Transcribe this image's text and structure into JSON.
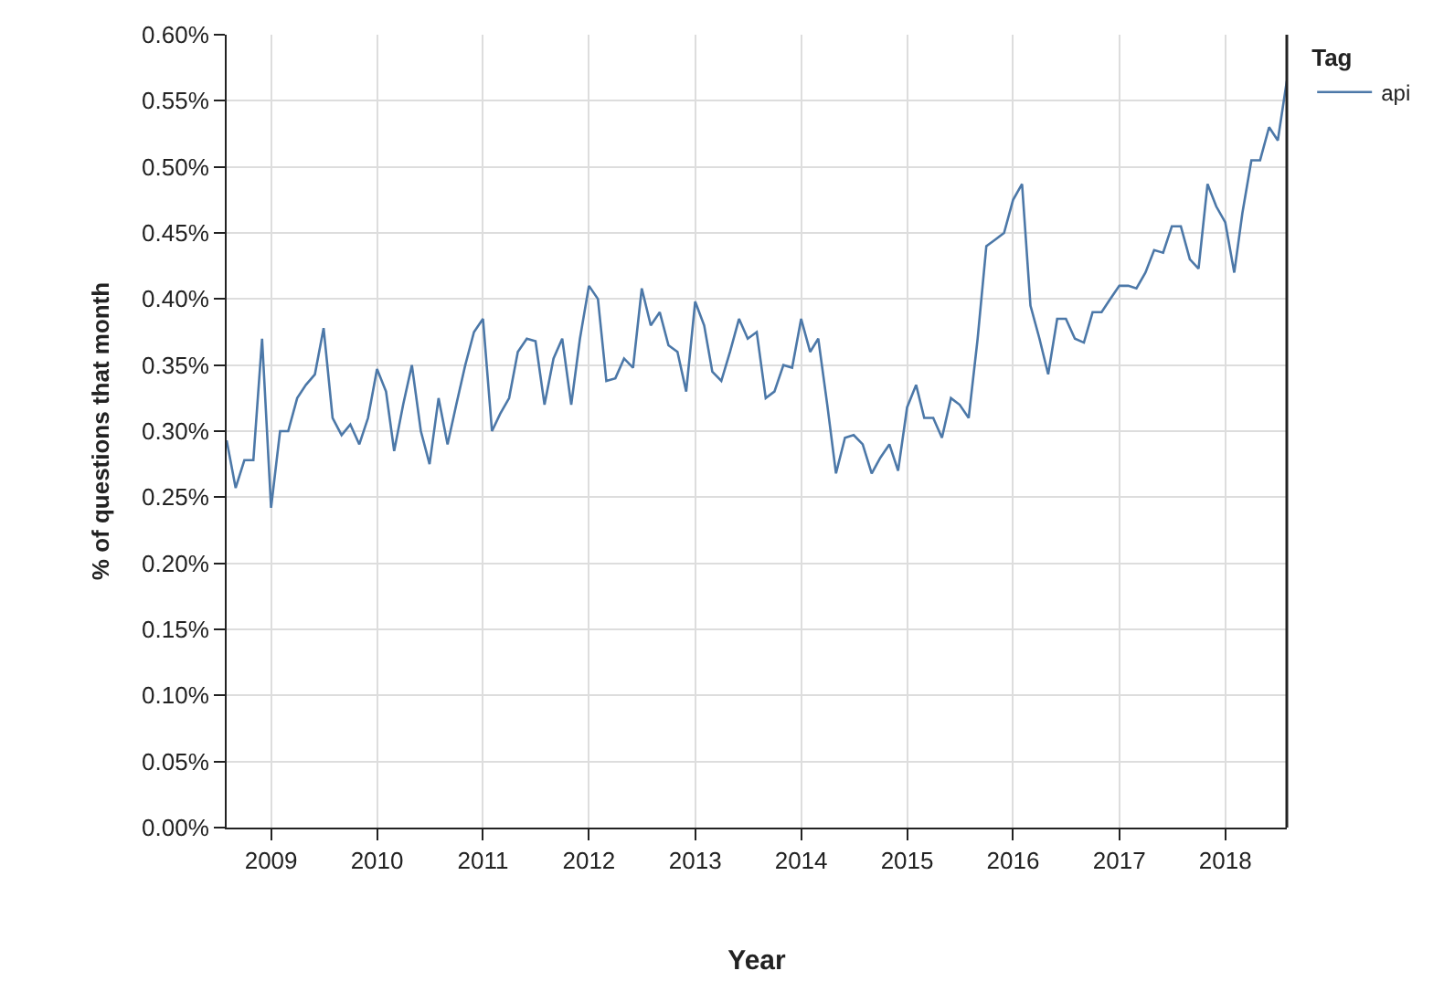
{
  "chart_data": {
    "type": "line",
    "xlabel": "Year",
    "ylabel": "% of questions that month",
    "legend_title": "Tag",
    "legend": "top right",
    "grid": true,
    "marker": "none",
    "line_style": "solid",
    "x": [
      "2008-08",
      "2008-09",
      "2008-10",
      "2008-11",
      "2008-12",
      "2009-01",
      "2009-02",
      "2009-03",
      "2009-04",
      "2009-05",
      "2009-06",
      "2009-07",
      "2009-08",
      "2009-09",
      "2009-10",
      "2009-11",
      "2009-12",
      "2010-01",
      "2010-02",
      "2010-03",
      "2010-04",
      "2010-05",
      "2010-06",
      "2010-07",
      "2010-08",
      "2010-09",
      "2010-10",
      "2010-11",
      "2010-12",
      "2011-01",
      "2011-02",
      "2011-03",
      "2011-04",
      "2011-05",
      "2011-06",
      "2011-07",
      "2011-08",
      "2011-09",
      "2011-10",
      "2011-11",
      "2011-12",
      "2012-01",
      "2012-02",
      "2012-03",
      "2012-04",
      "2012-05",
      "2012-06",
      "2012-07",
      "2012-08",
      "2012-09",
      "2012-10",
      "2012-11",
      "2012-12",
      "2013-01",
      "2013-02",
      "2013-03",
      "2013-04",
      "2013-05",
      "2013-06",
      "2013-07",
      "2013-08",
      "2013-09",
      "2013-10",
      "2013-11",
      "2013-12",
      "2014-01",
      "2014-02",
      "2014-03",
      "2014-04",
      "2014-05",
      "2014-06",
      "2014-07",
      "2014-08",
      "2014-09",
      "2014-10",
      "2014-11",
      "2014-12",
      "2015-01",
      "2015-02",
      "2015-03",
      "2015-04",
      "2015-05",
      "2015-06",
      "2015-07",
      "2015-08",
      "2015-09",
      "2015-10",
      "2015-11",
      "2015-12",
      "2016-01",
      "2016-02",
      "2016-03",
      "2016-04",
      "2016-05",
      "2016-06",
      "2016-07",
      "2016-08",
      "2016-09",
      "2016-10",
      "2016-11",
      "2016-12",
      "2017-01",
      "2017-02",
      "2017-03",
      "2017-04",
      "2017-05",
      "2017-06",
      "2017-07",
      "2017-08",
      "2017-09",
      "2017-10",
      "2017-11",
      "2017-12",
      "2018-01",
      "2018-02",
      "2018-03",
      "2018-04",
      "2018-05",
      "2018-06",
      "2018-07",
      "2018-08"
    ],
    "series": [
      {
        "name": "api",
        "color": "#4c78a8",
        "values": [
          0.293,
          0.257,
          0.278,
          0.278,
          0.37,
          0.242,
          0.3,
          0.3,
          0.325,
          0.335,
          0.343,
          0.378,
          0.31,
          0.297,
          0.305,
          0.29,
          0.31,
          0.347,
          0.33,
          0.285,
          0.32,
          0.35,
          0.3,
          0.275,
          0.325,
          0.29,
          0.32,
          0.35,
          0.375,
          0.385,
          0.3,
          0.313,
          0.325,
          0.36,
          0.37,
          0.368,
          0.32,
          0.355,
          0.37,
          0.32,
          0.37,
          0.41,
          0.4,
          0.338,
          0.34,
          0.355,
          0.348,
          0.408,
          0.38,
          0.39,
          0.365,
          0.36,
          0.33,
          0.398,
          0.38,
          0.345,
          0.338,
          0.36,
          0.385,
          0.37,
          0.375,
          0.325,
          0.33,
          0.35,
          0.348,
          0.385,
          0.36,
          0.37,
          0.32,
          0.268,
          0.295,
          0.297,
          0.29,
          0.268,
          0.28,
          0.29,
          0.27,
          0.318,
          0.335,
          0.31,
          0.31,
          0.295,
          0.325,
          0.32,
          0.31,
          0.37,
          0.44,
          0.445,
          0.45,
          0.475,
          0.487,
          0.395,
          0.37,
          0.343,
          0.385,
          0.385,
          0.37,
          0.367,
          0.39,
          0.39,
          0.4,
          0.41,
          0.41,
          0.408,
          0.42,
          0.437,
          0.435,
          0.455,
          0.455,
          0.43,
          0.423,
          0.487,
          0.47,
          0.458,
          0.42,
          0.465,
          0.505,
          0.505,
          0.53,
          0.52,
          0.565
        ]
      }
    ],
    "xlim": [
      "2008-08",
      "2018-08"
    ],
    "xticks": [
      {
        "value": "2009",
        "label": "2009"
      },
      {
        "value": "2010",
        "label": "2010"
      },
      {
        "value": "2011",
        "label": "2011"
      },
      {
        "value": "2012",
        "label": "2012"
      },
      {
        "value": "2013",
        "label": "2013"
      },
      {
        "value": "2014",
        "label": "2014"
      },
      {
        "value": "2015",
        "label": "2015"
      },
      {
        "value": "2016",
        "label": "2016"
      },
      {
        "value": "2017",
        "label": "2017"
      },
      {
        "value": "2018",
        "label": "2018"
      }
    ],
    "ylim": [
      0,
      0.6
    ],
    "yticks": [
      {
        "value": 0,
        "label": "0.00%"
      },
      {
        "value": 0.05,
        "label": "0.05%"
      },
      {
        "value": 0.1,
        "label": "0.10%"
      },
      {
        "value": 0.15,
        "label": "0.15%"
      },
      {
        "value": 0.2,
        "label": "0.20%"
      },
      {
        "value": 0.25,
        "label": "0.25%"
      },
      {
        "value": 0.3,
        "label": "0.30%"
      },
      {
        "value": 0.35,
        "label": "0.35%"
      },
      {
        "value": 0.4,
        "label": "0.40%"
      },
      {
        "value": 0.45,
        "label": "0.45%"
      },
      {
        "value": 0.5,
        "label": "0.50%"
      },
      {
        "value": 0.55,
        "label": "0.55%"
      },
      {
        "value": 0.6,
        "label": "0.60%"
      }
    ]
  }
}
